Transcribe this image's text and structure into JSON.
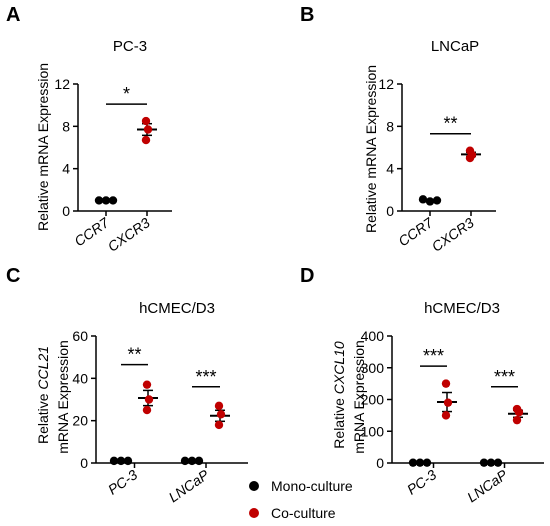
{
  "chart_data": [
    {
      "panel": "A",
      "title": "PC-3",
      "type": "scatter",
      "ylabel": "Relative mRNA Expression",
      "ylim": [
        0,
        12
      ],
      "yticks": [
        0,
        4,
        8,
        12
      ],
      "categories": [
        "CCR7",
        "CXCR3"
      ],
      "series": [
        {
          "name": "",
          "color": "#000000",
          "category": "CCR7",
          "points": [
            1.0,
            1.0,
            1.0
          ],
          "mean": 1.0,
          "sem": 0.05
        },
        {
          "name": "",
          "color": "#c00000",
          "category": "CXCR3",
          "points": [
            8.5,
            7.7,
            6.7
          ],
          "mean": 7.7,
          "sem": 0.55
        }
      ],
      "significance": [
        {
          "label": "*",
          "y": 10.1
        }
      ]
    },
    {
      "panel": "B",
      "title": "LNCaP",
      "type": "scatter",
      "ylabel": "Relative mRNA Expression",
      "ylim": [
        0,
        12
      ],
      "yticks": [
        0,
        4,
        8,
        12
      ],
      "categories": [
        "CCR7",
        "CXCR3"
      ],
      "series": [
        {
          "name": "",
          "color": "#000000",
          "category": "CCR7",
          "points": [
            1.1,
            0.9,
            1.0
          ],
          "mean": 1.0,
          "sem": 0.06
        },
        {
          "name": "",
          "color": "#c00000",
          "category": "CXCR3",
          "points": [
            5.7,
            5.3,
            5.0
          ],
          "mean": 5.35,
          "sem": 0.2
        }
      ],
      "significance": [
        {
          "label": "**",
          "y": 7.3
        }
      ]
    },
    {
      "panel": "C",
      "title": "hCMEC/D3",
      "type": "scatter",
      "ylabel_italic": "CCL21",
      "ylabel_prefix": "Relative",
      "ylabel_line2": "mRNA Expression",
      "ylim": [
        0,
        60
      ],
      "yticks": [
        0,
        20,
        40,
        60
      ],
      "categories": [
        "PC-3",
        "LNCaP"
      ],
      "series": [
        {
          "name": "Mono-culture",
          "color": "#000000",
          "category": "PC-3",
          "points": [
            1.0,
            1.0,
            1.0
          ],
          "mean": 1.0,
          "sem": 0.1
        },
        {
          "name": "Co-culture",
          "color": "#c00000",
          "category": "PC-3",
          "points": [
            37.0,
            30.0,
            25.0
          ],
          "mean": 30.7,
          "sem": 3.6
        },
        {
          "name": "Mono-culture",
          "color": "#000000",
          "category": "LNCaP",
          "points": [
            1.0,
            1.0,
            1.0
          ],
          "mean": 1.0,
          "sem": 0.1
        },
        {
          "name": "Co-culture",
          "color": "#c00000",
          "category": "LNCaP",
          "points": [
            27.0,
            23.0,
            18.0
          ],
          "mean": 22.3,
          "sem": 2.6
        }
      ],
      "significance": [
        {
          "label": "**",
          "category": "PC-3",
          "y": 46.5
        },
        {
          "label": "***",
          "category": "LNCaP",
          "y": 36.0
        }
      ]
    },
    {
      "panel": "D",
      "title": "hCMEC/D3",
      "type": "scatter",
      "ylabel_italic": "CXCL10",
      "ylabel_prefix": "Relative",
      "ylabel_line2": "mRNA Expression",
      "ylim": [
        0,
        400
      ],
      "yticks": [
        0,
        100,
        200,
        300,
        400
      ],
      "categories": [
        "PC-3",
        "LNCaP"
      ],
      "series": [
        {
          "name": "Mono-culture",
          "color": "#000000",
          "category": "PC-3",
          "points": [
            1.0,
            1.0,
            1.0
          ],
          "mean": 1.0,
          "sem": 0.5
        },
        {
          "name": "Co-culture",
          "color": "#c00000",
          "category": "PC-3",
          "points": [
            250.0,
            190.0,
            150.0
          ],
          "mean": 192.0,
          "sem": 30.0
        },
        {
          "name": "Mono-culture",
          "color": "#000000",
          "category": "LNCaP",
          "points": [
            1.0,
            1.0,
            1.0
          ],
          "mean": 1.0,
          "sem": 0.5
        },
        {
          "name": "Co-culture",
          "color": "#c00000",
          "category": "LNCaP",
          "points": [
            170.0,
            160.0,
            135.0
          ],
          "mean": 155.0,
          "sem": 11.0
        }
      ],
      "significance": [
        {
          "label": "***",
          "category": "PC-3",
          "y": 305
        },
        {
          "label": "***",
          "category": "LNCaP",
          "y": 240
        }
      ]
    }
  ],
  "legend": {
    "items": [
      {
        "label": "Mono-culture",
        "color": "#000000"
      },
      {
        "label": "Co-culture",
        "color": "#c00000"
      }
    ]
  }
}
